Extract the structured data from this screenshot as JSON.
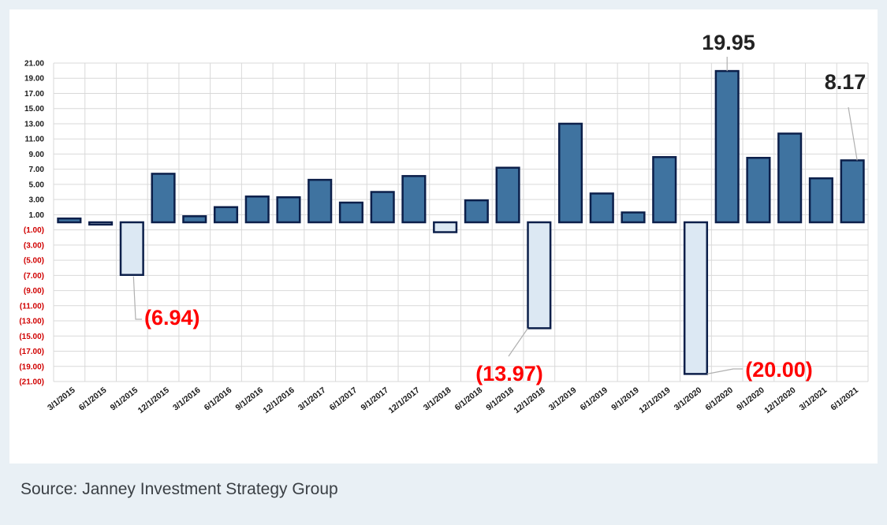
{
  "caption": "Source: Janney Investment Strategy Group",
  "colors": {
    "positive": "#3f73a0",
    "negative": "#dce8f3",
    "border": "#0c1f4a",
    "pos_label": "#222222",
    "neg_label": "#ff0000",
    "grid": "#d9d9d9"
  },
  "chart_data": {
    "type": "bar",
    "title": "",
    "xlabel": "",
    "ylabel": "",
    "ylim": [
      -21,
      21
    ],
    "yticks": [
      21,
      19,
      17,
      15,
      13,
      11,
      9,
      7,
      5,
      3,
      1,
      -1,
      -3,
      -5,
      -7,
      -9,
      -11,
      -13,
      -15,
      -17,
      -19,
      -21
    ],
    "ytick_labels": [
      "21.00",
      "19.00",
      "17.00",
      "15.00",
      "13.00",
      "11.00",
      "9.00",
      "7.00",
      "5.00",
      "3.00",
      "1.00",
      "(1.00)",
      "(3.00)",
      "(5.00)",
      "(7.00)",
      "(9.00)",
      "(11.00)",
      "(13.00)",
      "(15.00)",
      "(17.00)",
      "(19.00)",
      "(21.00)"
    ],
    "grid": true,
    "legend": "none",
    "categories": [
      "3/1/2015",
      "6/1/2015",
      "9/1/2015",
      "12/1/2015",
      "3/1/2016",
      "6/1/2016",
      "9/1/2016",
      "12/1/2016",
      "3/1/2017",
      "6/1/2017",
      "9/1/2017",
      "12/1/2017",
      "3/1/2018",
      "6/1/2018",
      "9/1/2018",
      "12/1/2018",
      "3/1/2019",
      "6/1/2019",
      "9/1/2019",
      "12/1/2019",
      "3/1/2020",
      "6/1/2020",
      "9/1/2020",
      "12/1/2020",
      "3/1/2021",
      "6/1/2021"
    ],
    "values": [
      0.5,
      -0.3,
      -6.94,
      6.4,
      0.8,
      2.0,
      3.4,
      3.3,
      5.6,
      2.6,
      4.0,
      6.1,
      -1.3,
      2.9,
      7.2,
      -13.97,
      13.0,
      3.8,
      1.3,
      8.6,
      -20.0,
      19.95,
      8.5,
      11.7,
      5.8,
      8.17
    ],
    "annotations": [
      {
        "category": "9/1/2015",
        "value": -6.94,
        "text": "(6.94)",
        "kind": "neg"
      },
      {
        "category": "12/1/2018",
        "value": -13.97,
        "text": "(13.97)",
        "kind": "neg"
      },
      {
        "category": "3/1/2020",
        "value": -20.0,
        "text": "(20.00)",
        "kind": "neg"
      },
      {
        "category": "6/1/2020",
        "value": 19.95,
        "text": "19.95",
        "kind": "pos"
      },
      {
        "category": "6/1/2021",
        "value": 8.17,
        "text": "8.17",
        "kind": "pos"
      }
    ]
  }
}
